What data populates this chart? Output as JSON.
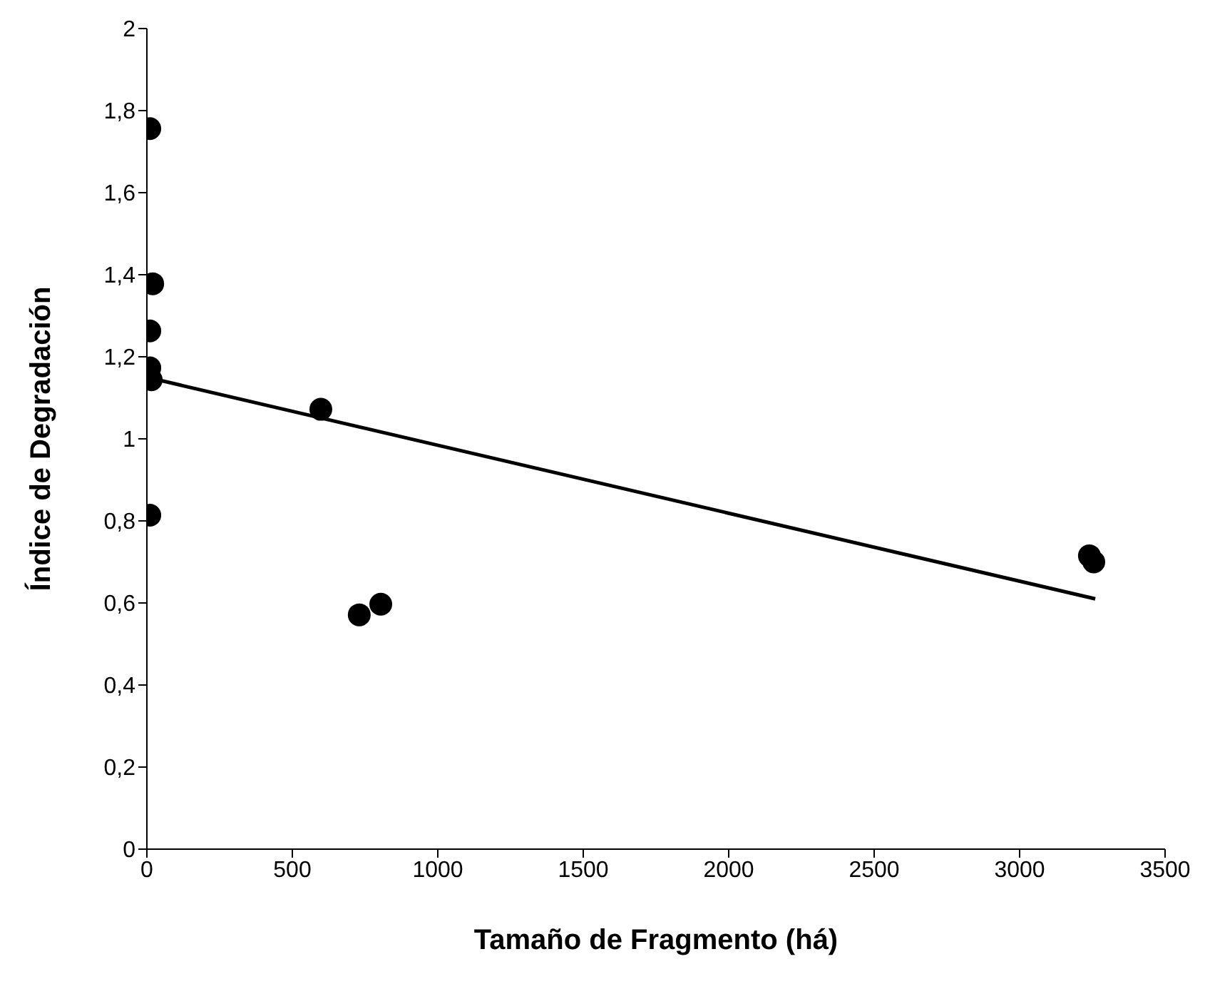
{
  "chart_data": {
    "type": "scatter",
    "xlabel": "Tamaño de Fragmento (há)",
    "ylabel": "Índice de Degradación",
    "xlim": [
      0,
      3500
    ],
    "xticks": [
      0,
      500,
      1000,
      1500,
      2000,
      2500,
      3000,
      3500
    ],
    "ylim": [
      0,
      2
    ],
    "yticks": [
      0,
      {
        "value": 0.2,
        "label": "0,2"
      },
      {
        "value": 0.4,
        "label": "0,4"
      },
      {
        "value": 0.6,
        "label": "0,6"
      },
      {
        "value": 0.8,
        "label": "0,8"
      },
      1,
      {
        "value": 1.2,
        "label": "1,2"
      },
      {
        "value": 1.4,
        "label": "1,4"
      },
      {
        "value": 1.6,
        "label": "1,6"
      },
      {
        "value": 1.8,
        "label": "1,8"
      },
      2
    ],
    "grid": false,
    "legend": false,
    "marker": "circle",
    "series": [
      {
        "color": "#000000",
        "x": [
          10,
          20,
          10,
          10,
          15,
          10,
          598,
          730,
          804,
          3240,
          3255
        ],
        "values": [
          1.756,
          1.378,
          1.263,
          1.173,
          1.144,
          0.814,
          1.072,
          0.571,
          0.597,
          0.715,
          0.7
        ]
      },
      {
        "type": "line",
        "color": "#000000",
        "marker": "none",
        "line_style": "solid",
        "x": [
          0,
          3260
        ],
        "values": [
          1.15,
          0.61
        ]
      }
    ]
  }
}
